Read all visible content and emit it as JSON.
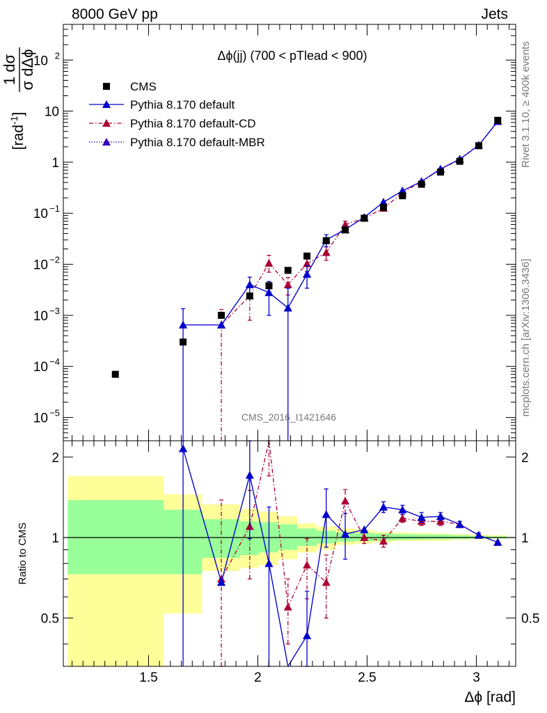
{
  "header": {
    "left": "8000 GeV pp",
    "right": "Jets"
  },
  "side_labels": {
    "rivet": "Rivet 3.1.10, ≥ 400k events",
    "mcplots": "mcplots.cern.ch [arXiv:1306.3436]"
  },
  "analysis_label": "CMS_2016_I1421646",
  "chart_data": [
    {
      "type": "scatter",
      "panel": "main",
      "title": "Δϕ(jj) (700 < pTlead <  900)",
      "ylabel": "1/σ dσ/dΔϕ [rad⁻¹]",
      "xlabel": "Δϕ [rad]",
      "xlim": [
        1.11,
        3.18
      ],
      "ylim": [
        3.5e-06,
        500
      ],
      "yscale": "log",
      "xticks": [
        1.5,
        2,
        2.5,
        3
      ],
      "xtick_labels": [
        "1.5",
        "2",
        "2.5",
        "3"
      ],
      "yticks": [
        1e-05,
        0.0001,
        0.001,
        0.01,
        0.1,
        1,
        10,
        100
      ],
      "ytick_labels": [
        {
          "base": "10",
          "exp": "−5"
        },
        {
          "base": "10",
          "exp": "−4"
        },
        {
          "base": "10",
          "exp": "−3"
        },
        {
          "base": "10",
          "exp": "−2"
        },
        {
          "base": "10",
          "exp": "−1"
        },
        {
          "base": "1",
          "exp": ""
        },
        {
          "base": "10",
          "exp": ""
        },
        {
          "base": "10",
          "exp": "2"
        }
      ],
      "legend_placement": "top-left",
      "series": [
        {
          "name": "CMS",
          "style": "data",
          "color": "#000000",
          "x": [
            1.348,
            1.658,
            1.833,
            1.963,
            2.051,
            2.138,
            2.225,
            2.313,
            2.4,
            2.487,
            2.575,
            2.662,
            2.749,
            2.836,
            2.924,
            3.011,
            3.098
          ],
          "y": [
            7e-05,
            0.0003,
            0.001,
            0.0024,
            0.0038,
            0.0076,
            0.0145,
            0.029,
            0.047,
            0.08,
            0.13,
            0.22,
            0.37,
            0.64,
            1.04,
            2.1,
            6.6
          ]
        },
        {
          "name": "Pythia 8.170 default",
          "style": "solid",
          "color": "#0000cc",
          "x": [
            1.658,
            1.833,
            1.963,
            2.051,
            2.138,
            2.225,
            2.313,
            2.4,
            2.487,
            2.575,
            2.662,
            2.749,
            2.836,
            2.924,
            3.011,
            3.098
          ],
          "y": [
            0.00065,
            0.00065,
            0.004,
            0.0028,
            0.0014,
            0.0064,
            0.03,
            0.048,
            0.083,
            0.165,
            0.275,
            0.42,
            0.735,
            1.15,
            2.15,
            6.3
          ],
          "err_lo": [
            0.00065,
            0,
            0.0016,
            0.0018,
            0.0014,
            0.003,
            0.008,
            0,
            0,
            0,
            0,
            0,
            0,
            0,
            0,
            0
          ],
          "err_hi": [
            0.0007,
            0,
            0.0016,
            0.0018,
            0.002,
            0.003,
            0.008,
            0,
            0,
            0,
            0,
            0,
            0,
            0,
            0,
            0
          ]
        },
        {
          "name": "Pythia 8.170 default-CD",
          "style": "dashdot",
          "color": "#aa0033",
          "x": [
            1.833,
            1.963,
            2.051,
            2.138,
            2.225,
            2.313,
            2.4,
            2.487,
            2.575,
            2.662,
            2.749,
            2.836,
            2.924,
            3.011,
            3.098
          ],
          "y": [
            0.00065,
            0.0024,
            0.0105,
            0.004,
            0.0103,
            0.017,
            0.06,
            0.08,
            0.125,
            0.25,
            0.42,
            0.72,
            1.13,
            2.15,
            6.3
          ],
          "err_lo": [
            0.00065,
            0.0016,
            0.0035,
            0.0015,
            0.003,
            0.005,
            0.01,
            0,
            0,
            0,
            0,
            0,
            0,
            0,
            0
          ],
          "err_hi": [
            0.00065,
            0.0016,
            0.0045,
            0.0015,
            0.003,
            0.005,
            0.01,
            0,
            0,
            0,
            0,
            0,
            0,
            0,
            0
          ]
        },
        {
          "name": "Pythia 8.170 default-MBR",
          "style": "dotted",
          "color": "#3300bb",
          "x": [
            1.658,
            1.833,
            1.963,
            2.051,
            2.138,
            2.225,
            2.313,
            2.4,
            2.487,
            2.575,
            2.662,
            2.749,
            2.836,
            2.924,
            3.011,
            3.098
          ],
          "y": [
            0.00065,
            0.00065,
            0.004,
            0.0028,
            0.0014,
            0.0064,
            0.03,
            0.048,
            0.083,
            0.165,
            0.275,
            0.42,
            0.735,
            1.15,
            2.15,
            6.3
          ]
        }
      ]
    },
    {
      "type": "line",
      "panel": "ratio",
      "ylabel": "Ratio to CMS",
      "xlim": [
        1.11,
        3.18
      ],
      "ylim": [
        0.33,
        2.3
      ],
      "yscale": "log",
      "yticks": [
        0.5,
        1,
        2
      ],
      "ytick_labels": [
        "0.5",
        "1",
        "2"
      ],
      "reference_line": 1,
      "bands": {
        "edges": [
          1.13,
          1.57,
          1.745,
          1.92,
          2.005,
          2.093,
          2.18,
          2.269,
          2.356,
          2.444,
          2.531,
          2.618,
          2.705,
          2.793,
          2.88,
          2.967,
          3.054,
          3.14
        ],
        "outer_lo": [
          0.33,
          0.52,
          0.75,
          0.77,
          0.79,
          0.83,
          0.88,
          0.9,
          0.94,
          0.95,
          0.96,
          0.97,
          0.97,
          0.97,
          0.98,
          0.985,
          0.99
        ],
        "outer_hi": [
          1.7,
          1.45,
          1.33,
          1.28,
          1.25,
          1.2,
          1.13,
          1.1,
          1.08,
          1.07,
          1.05,
          1.045,
          1.04,
          1.035,
          1.03,
          1.025,
          1.02
        ],
        "inner_lo": [
          0.73,
          0.73,
          0.84,
          0.86,
          0.88,
          0.9,
          0.93,
          0.95,
          0.965,
          0.97,
          0.975,
          0.98,
          0.983,
          0.985,
          0.987,
          0.99,
          0.993
        ],
        "inner_hi": [
          1.38,
          1.27,
          1.17,
          1.15,
          1.14,
          1.12,
          1.08,
          1.06,
          1.045,
          1.04,
          1.035,
          1.03,
          1.027,
          1.025,
          1.02,
          1.015,
          1.01
        ],
        "outer_color": "#ffff99",
        "inner_color": "#99ff99"
      },
      "series": [
        {
          "name": "Pythia 8.170 default",
          "style": "solid",
          "color": "#0000cc",
          "x": [
            1.658,
            1.833,
            1.963,
            2.051,
            2.138,
            2.225,
            2.313,
            2.4,
            2.487,
            2.575,
            2.662,
            2.749,
            2.836,
            2.924,
            3.011,
            3.098
          ],
          "y": [
            2.15,
            0.68,
            1.71,
            0.8,
            0.2,
            0.43,
            1.22,
            1.03,
            1.07,
            1.3,
            1.27,
            1.19,
            1.2,
            1.12,
            1.02,
            0.96
          ],
          "err_lo": [
            2.15,
            0,
            0.72,
            0.5,
            0,
            0.2,
            0.3,
            0.2,
            0,
            0.06,
            0.05,
            0.05,
            0.04,
            0.03,
            0.02,
            0
          ],
          "err_hi": [
            2.15,
            0,
            0.72,
            0.5,
            0,
            0.2,
            0.3,
            0.2,
            0,
            0.06,
            0.05,
            0.05,
            0.04,
            0.03,
            0.02,
            0
          ]
        },
        {
          "name": "Pythia 8.170 default-CD",
          "style": "dashdot",
          "color": "#aa0033",
          "x": [
            1.833,
            1.963,
            2.051,
            2.138,
            2.225,
            2.313,
            2.4,
            2.487,
            2.575,
            2.662,
            2.749,
            2.836,
            2.924,
            3.011,
            3.098
          ],
          "y": [
            0.7,
            1.1,
            2.7,
            0.55,
            0.79,
            0.68,
            1.37,
            1.0,
            0.97,
            1.18,
            1.15,
            1.15,
            1.12,
            1.02,
            0.96
          ],
          "err_lo": [
            0.68,
            0.4,
            1.0,
            0.15,
            0.2,
            0.18,
            0.14,
            0.05,
            0.05,
            0.04,
            0.04,
            0.04,
            0.03,
            0.02,
            0
          ],
          "err_hi": [
            0.68,
            0.4,
            1.0,
            0.15,
            0.2,
            0.18,
            0.14,
            0.05,
            0.05,
            0.04,
            0.04,
            0.04,
            0.03,
            0.02,
            0
          ]
        },
        {
          "name": "Pythia 8.170 default-MBR",
          "style": "dotted",
          "color": "#3300bb",
          "x": [
            1.658,
            1.833,
            1.963,
            2.051,
            2.138,
            2.225,
            2.313,
            2.4,
            2.487,
            2.575,
            2.662,
            2.749,
            2.836,
            2.924,
            3.011,
            3.098
          ],
          "y": [
            2.15,
            0.68,
            1.71,
            0.8,
            0.2,
            0.43,
            1.22,
            1.03,
            1.07,
            1.3,
            1.27,
            1.19,
            1.2,
            1.12,
            1.02,
            0.96
          ]
        }
      ]
    }
  ]
}
